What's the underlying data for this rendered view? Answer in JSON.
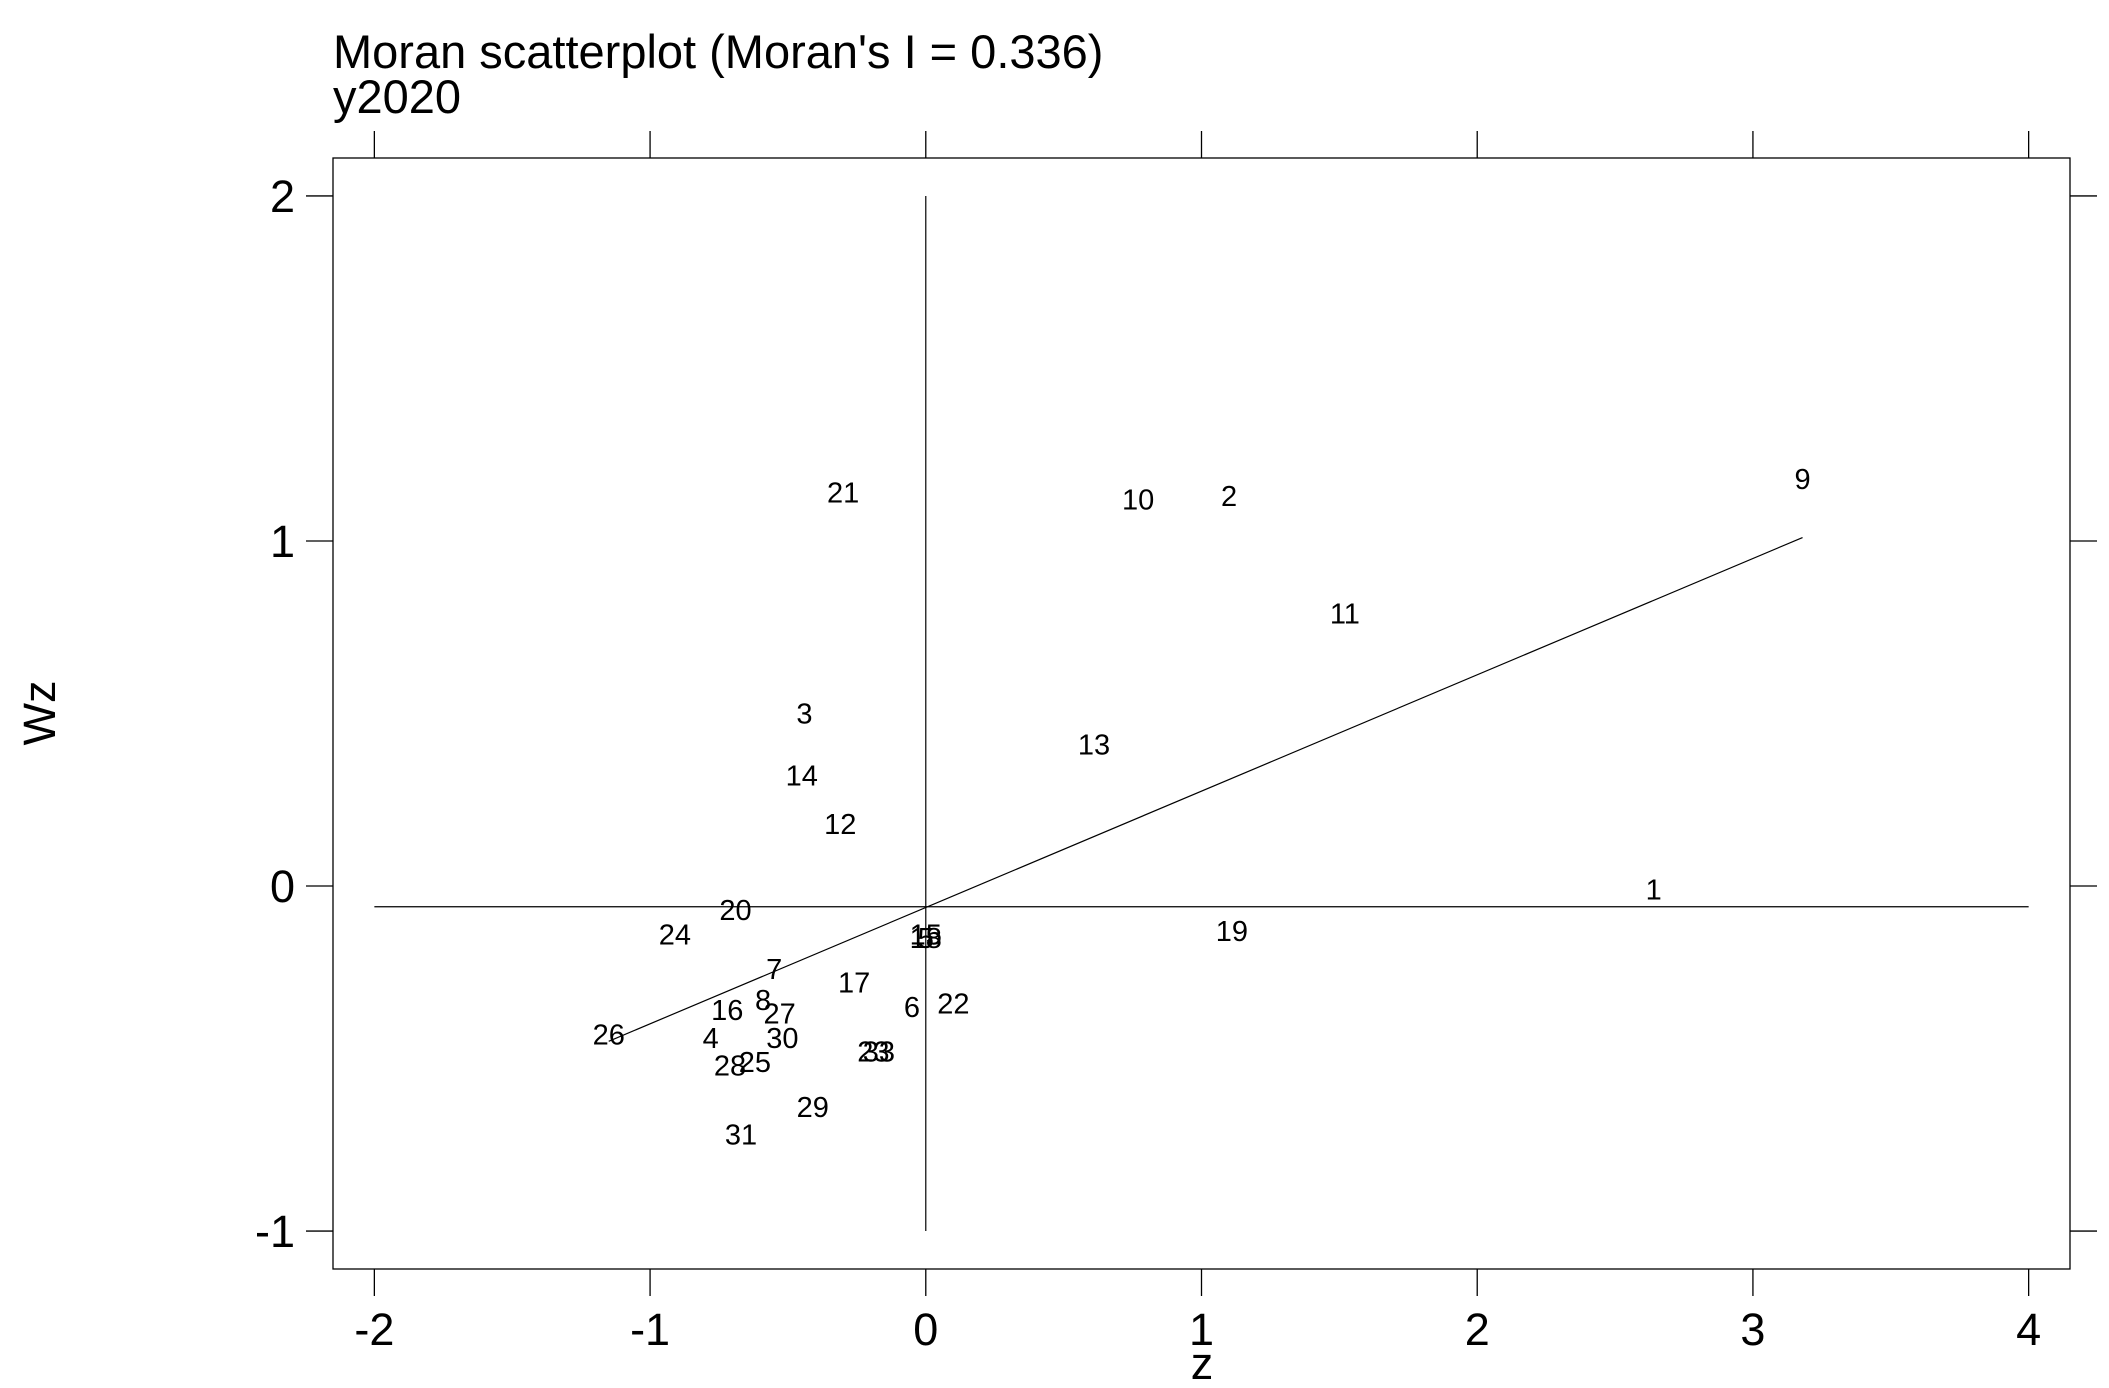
{
  "chart_data": {
    "type": "scatter",
    "title": "Moran scatterplot (Moran's I = 0.336)",
    "subtitle": "y2020",
    "xlabel": "z",
    "ylabel": "Wz",
    "xlim": [
      -2.15,
      4.15
    ],
    "ylim": [
      -1.11,
      2.11
    ],
    "x_ticks": [
      -2,
      -1,
      0,
      1,
      2,
      3,
      4
    ],
    "x_tick_labels": [
      "-2",
      "-1",
      "0",
      "1",
      "2",
      "3",
      "4"
    ],
    "y_ticks": [
      -1,
      0,
      1,
      2
    ],
    "y_tick_labels": [
      "-1",
      "0",
      "1",
      "2"
    ],
    "grid": false,
    "reference_lines": {
      "vertical_x": 0,
      "vertical_y_range": [
        -1,
        2
      ],
      "horizontal_y": -0.06,
      "horizontal_x_range": [
        -2,
        4
      ]
    },
    "fit_line": {
      "x": [
        -1.15,
        3.18
      ],
      "y": [
        -0.45,
        1.01
      ]
    },
    "points": [
      {
        "label": "1",
        "x": 2.64,
        "y": -0.01
      },
      {
        "label": "2",
        "x": 1.1,
        "y": 1.13
      },
      {
        "label": "3",
        "x": -0.44,
        "y": 0.5
      },
      {
        "label": "4",
        "x": -0.78,
        "y": -0.44
      },
      {
        "label": "5",
        "x": 0.0,
        "y": -0.15
      },
      {
        "label": "6",
        "x": -0.05,
        "y": -0.35
      },
      {
        "label": "7",
        "x": -0.55,
        "y": -0.24
      },
      {
        "label": "8",
        "x": -0.59,
        "y": -0.33
      },
      {
        "label": "9",
        "x": 3.18,
        "y": 1.18
      },
      {
        "label": "10",
        "x": 0.77,
        "y": 1.12
      },
      {
        "label": "11",
        "x": 1.52,
        "y": 0.79
      },
      {
        "label": "12",
        "x": -0.31,
        "y": 0.18
      },
      {
        "label": "13",
        "x": 0.61,
        "y": 0.41
      },
      {
        "label": "14",
        "x": -0.45,
        "y": 0.32
      },
      {
        "label": "15",
        "x": 0.0,
        "y": -0.14
      },
      {
        "label": "16",
        "x": -0.72,
        "y": -0.36
      },
      {
        "label": "17",
        "x": -0.26,
        "y": -0.28
      },
      {
        "label": "18",
        "x": 0.0,
        "y": -0.15
      },
      {
        "label": "19",
        "x": 1.11,
        "y": -0.13
      },
      {
        "label": "20",
        "x": -0.69,
        "y": -0.07
      },
      {
        "label": "21",
        "x": -0.3,
        "y": 1.14
      },
      {
        "label": "22",
        "x": 0.1,
        "y": -0.34
      },
      {
        "label": "23",
        "x": -0.19,
        "y": -0.48
      },
      {
        "label": "24",
        "x": -0.91,
        "y": -0.14
      },
      {
        "label": "25",
        "x": -0.62,
        "y": -0.51
      },
      {
        "label": "26",
        "x": -1.15,
        "y": -0.43
      },
      {
        "label": "27",
        "x": -0.53,
        "y": -0.37
      },
      {
        "label": "28",
        "x": -0.71,
        "y": -0.52
      },
      {
        "label": "29",
        "x": -0.41,
        "y": -0.64
      },
      {
        "label": "30",
        "x": -0.52,
        "y": -0.44
      },
      {
        "label": "31",
        "x": -0.67,
        "y": -0.72
      },
      {
        "label": "33",
        "x": -0.17,
        "y": -0.48
      }
    ]
  }
}
